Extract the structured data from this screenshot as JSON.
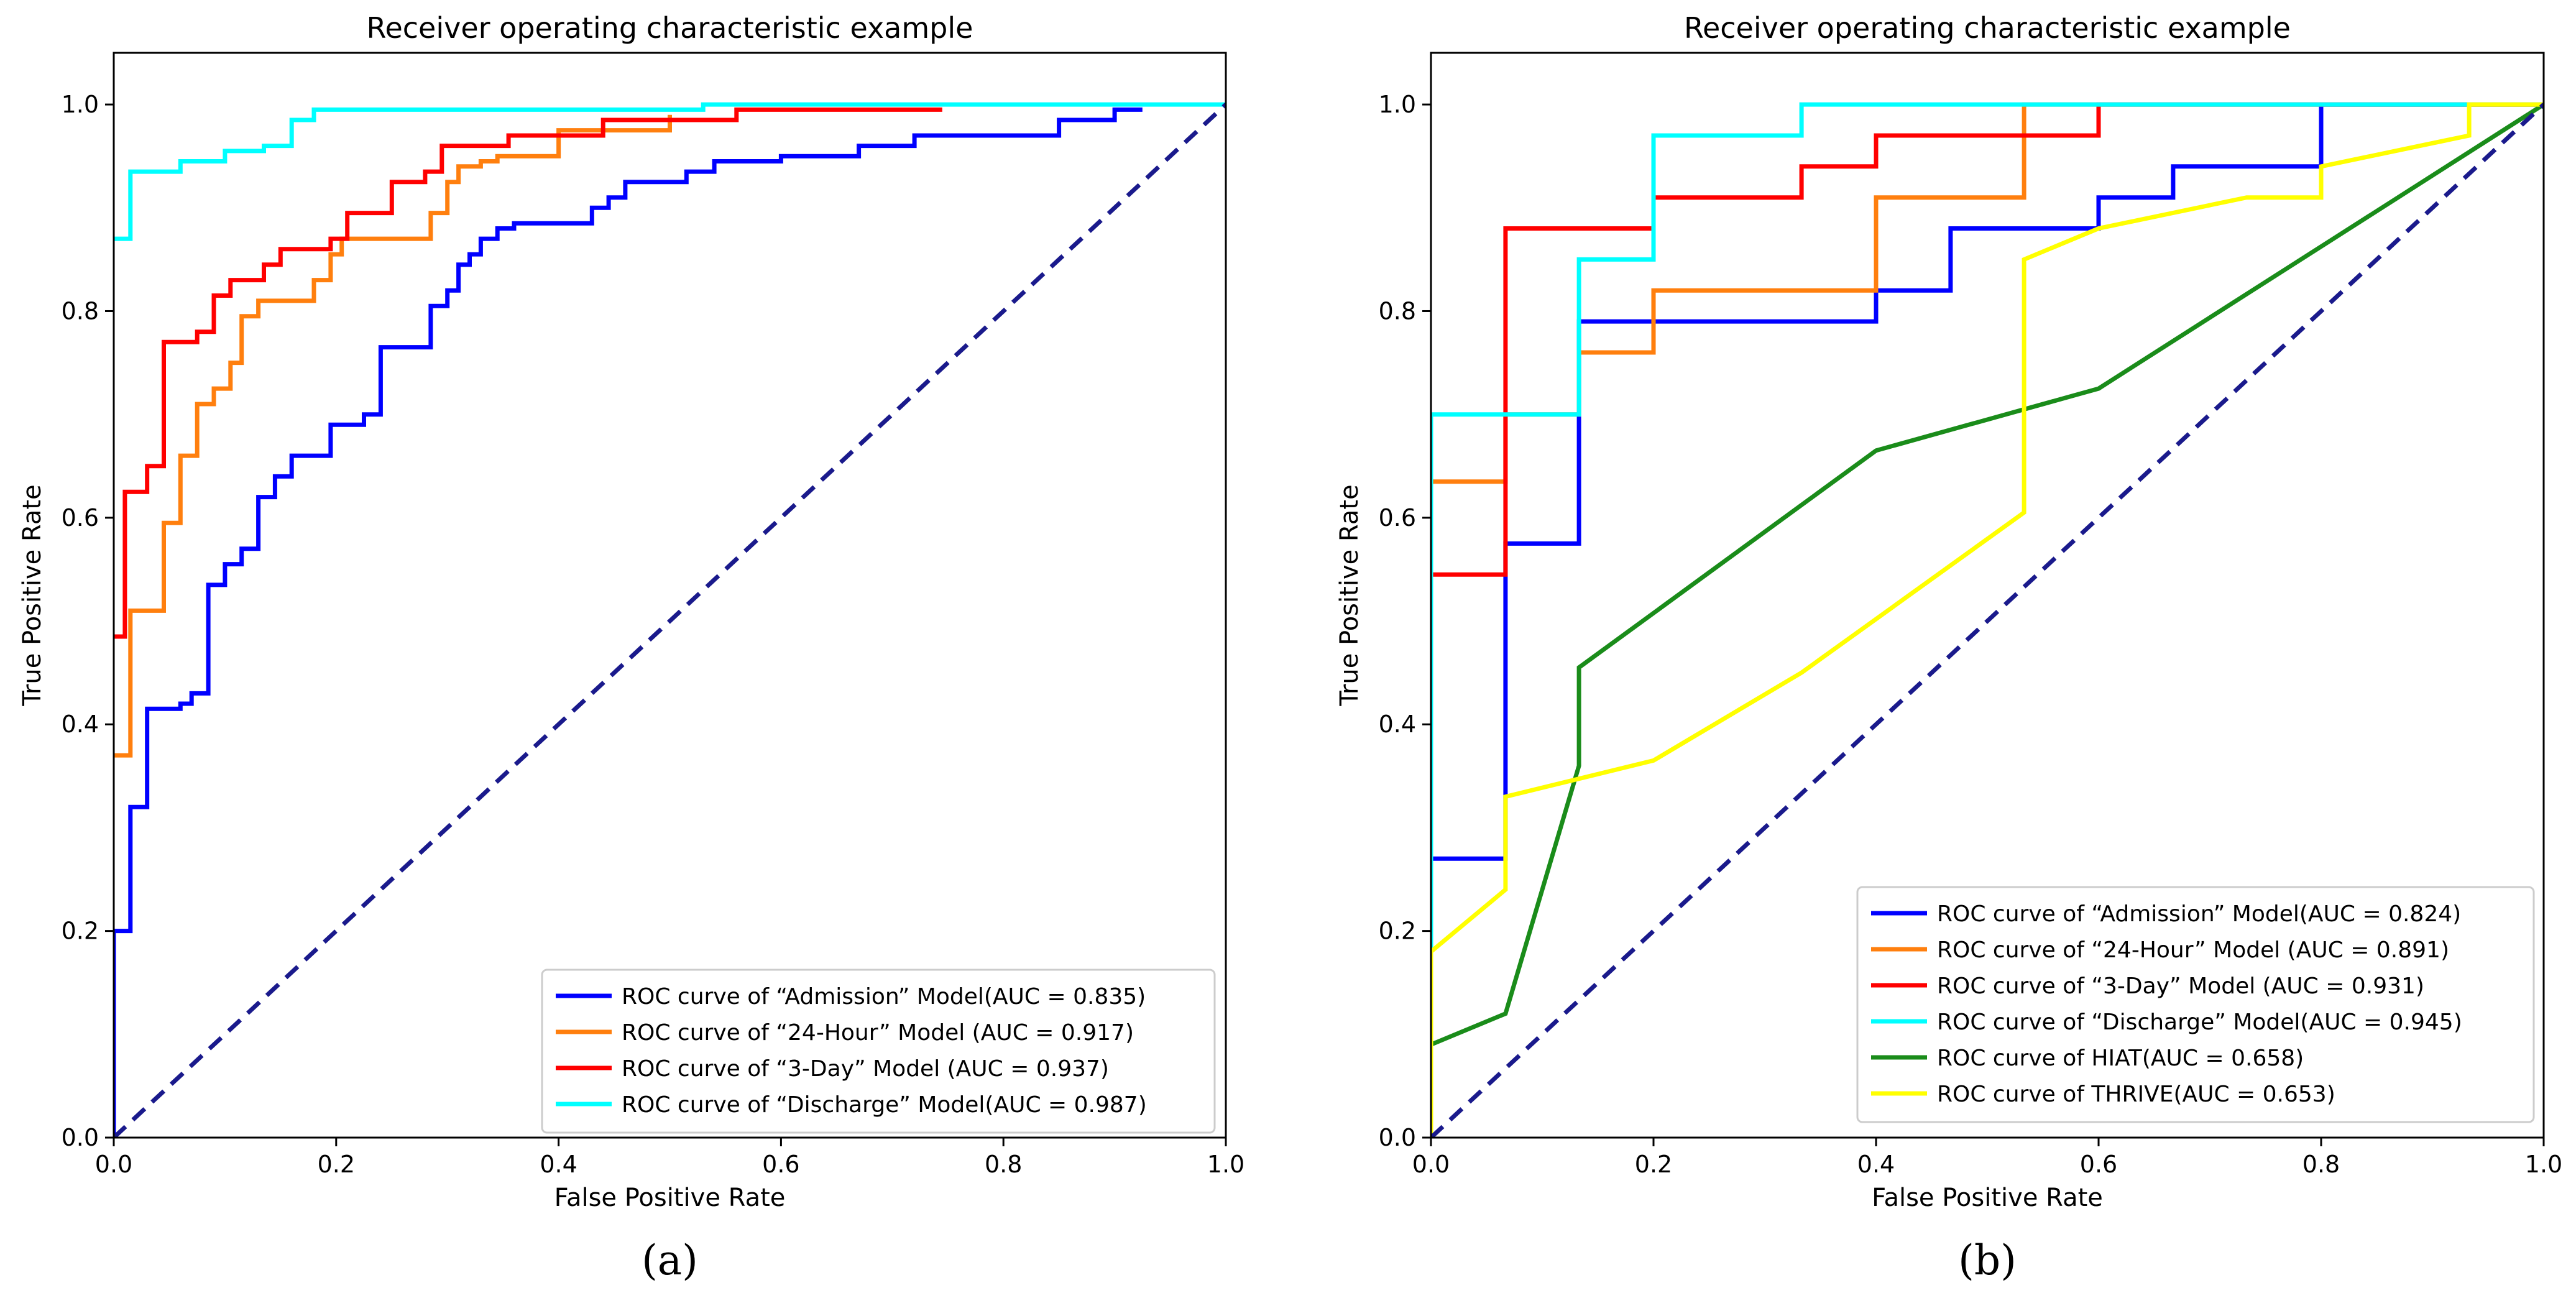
{
  "chart_data": [
    {
      "type": "line",
      "title": "Receiver operating characteristic example",
      "xlabel": "False Positive Rate",
      "ylabel": "True Positive Rate",
      "xlim": [
        0,
        1
      ],
      "ylim": [
        0,
        1.05
      ],
      "xticks": [
        "0.0",
        "0.2",
        "0.4",
        "0.6",
        "0.8",
        "1.0"
      ],
      "yticks": [
        "0.0",
        "0.2",
        "0.4",
        "0.6",
        "0.8",
        "1.0"
      ],
      "grid": false,
      "legend_position": "lower-right",
      "panel_label": "(a)",
      "chance_line": {
        "color": "#1a1a8c",
        "points": [
          [
            0,
            0
          ],
          [
            1,
            1
          ]
        ]
      },
      "series": [
        {
          "name": "ROC curve of “Admission” Model(AUC = 0.835)",
          "color": "#0000ff",
          "points": [
            [
              0,
              0
            ],
            [
              0,
              0.2
            ],
            [
              0.015,
              0.2
            ],
            [
              0.015,
              0.32
            ],
            [
              0.03,
              0.32
            ],
            [
              0.03,
              0.415
            ],
            [
              0.06,
              0.415
            ],
            [
              0.06,
              0.42
            ],
            [
              0.07,
              0.42
            ],
            [
              0.07,
              0.43
            ],
            [
              0.085,
              0.43
            ],
            [
              0.085,
              0.535
            ],
            [
              0.1,
              0.535
            ],
            [
              0.1,
              0.555
            ],
            [
              0.115,
              0.555
            ],
            [
              0.115,
              0.57
            ],
            [
              0.13,
              0.57
            ],
            [
              0.13,
              0.62
            ],
            [
              0.145,
              0.62
            ],
            [
              0.145,
              0.64
            ],
            [
              0.16,
              0.64
            ],
            [
              0.16,
              0.66
            ],
            [
              0.195,
              0.66
            ],
            [
              0.195,
              0.69
            ],
            [
              0.225,
              0.69
            ],
            [
              0.225,
              0.7
            ],
            [
              0.24,
              0.7
            ],
            [
              0.24,
              0.765
            ],
            [
              0.285,
              0.765
            ],
            [
              0.285,
              0.805
            ],
            [
              0.3,
              0.805
            ],
            [
              0.3,
              0.82
            ],
            [
              0.31,
              0.82
            ],
            [
              0.31,
              0.845
            ],
            [
              0.32,
              0.845
            ],
            [
              0.32,
              0.855
            ],
            [
              0.33,
              0.855
            ],
            [
              0.33,
              0.87
            ],
            [
              0.345,
              0.87
            ],
            [
              0.345,
              0.88
            ],
            [
              0.36,
              0.88
            ],
            [
              0.36,
              0.885
            ],
            [
              0.43,
              0.885
            ],
            [
              0.43,
              0.9
            ],
            [
              0.445,
              0.9
            ],
            [
              0.445,
              0.91
            ],
            [
              0.46,
              0.91
            ],
            [
              0.46,
              0.925
            ],
            [
              0.515,
              0.925
            ],
            [
              0.515,
              0.935
            ],
            [
              0.54,
              0.935
            ],
            [
              0.54,
              0.945
            ],
            [
              0.6,
              0.945
            ],
            [
              0.6,
              0.95
            ],
            [
              0.67,
              0.95
            ],
            [
              0.67,
              0.96
            ],
            [
              0.72,
              0.96
            ],
            [
              0.72,
              0.97
            ],
            [
              0.85,
              0.97
            ],
            [
              0.85,
              0.985
            ],
            [
              0.9,
              0.985
            ],
            [
              0.9,
              0.995
            ],
            [
              0.925,
              0.995
            ]
          ]
        },
        {
          "name": "ROC curve of “24-Hour” Model (AUC = 0.917)",
          "color": "#ff7f0e",
          "points": [
            [
              0,
              0.37
            ],
            [
              0.015,
              0.37
            ],
            [
              0.015,
              0.51
            ],
            [
              0.045,
              0.51
            ],
            [
              0.045,
              0.595
            ],
            [
              0.06,
              0.595
            ],
            [
              0.06,
              0.66
            ],
            [
              0.075,
              0.66
            ],
            [
              0.075,
              0.71
            ],
            [
              0.09,
              0.71
            ],
            [
              0.09,
              0.725
            ],
            [
              0.105,
              0.725
            ],
            [
              0.105,
              0.75
            ],
            [
              0.115,
              0.75
            ],
            [
              0.115,
              0.795
            ],
            [
              0.13,
              0.795
            ],
            [
              0.13,
              0.81
            ],
            [
              0.18,
              0.81
            ],
            [
              0.18,
              0.83
            ],
            [
              0.195,
              0.83
            ],
            [
              0.195,
              0.855
            ],
            [
              0.205,
              0.855
            ],
            [
              0.205,
              0.87
            ],
            [
              0.285,
              0.87
            ],
            [
              0.285,
              0.895
            ],
            [
              0.3,
              0.895
            ],
            [
              0.3,
              0.925
            ],
            [
              0.31,
              0.925
            ],
            [
              0.31,
              0.94
            ],
            [
              0.33,
              0.94
            ],
            [
              0.33,
              0.945
            ],
            [
              0.345,
              0.945
            ],
            [
              0.345,
              0.95
            ],
            [
              0.4,
              0.95
            ],
            [
              0.4,
              0.975
            ],
            [
              0.5,
              0.975
            ],
            [
              0.5,
              0.99
            ]
          ]
        },
        {
          "name": "ROC curve of “3-Day” Model (AUC = 0.937)",
          "color": "#ff0000",
          "points": [
            [
              0,
              0.485
            ],
            [
              0.01,
              0.485
            ],
            [
              0.01,
              0.625
            ],
            [
              0.03,
              0.625
            ],
            [
              0.03,
              0.65
            ],
            [
              0.045,
              0.65
            ],
            [
              0.045,
              0.77
            ],
            [
              0.075,
              0.77
            ],
            [
              0.075,
              0.78
            ],
            [
              0.09,
              0.78
            ],
            [
              0.09,
              0.815
            ],
            [
              0.105,
              0.815
            ],
            [
              0.105,
              0.83
            ],
            [
              0.135,
              0.83
            ],
            [
              0.135,
              0.845
            ],
            [
              0.15,
              0.845
            ],
            [
              0.15,
              0.86
            ],
            [
              0.195,
              0.86
            ],
            [
              0.195,
              0.87
            ],
            [
              0.21,
              0.87
            ],
            [
              0.21,
              0.895
            ],
            [
              0.25,
              0.895
            ],
            [
              0.25,
              0.925
            ],
            [
              0.28,
              0.925
            ],
            [
              0.28,
              0.935
            ],
            [
              0.295,
              0.935
            ],
            [
              0.295,
              0.96
            ],
            [
              0.355,
              0.96
            ],
            [
              0.355,
              0.97
            ],
            [
              0.44,
              0.97
            ],
            [
              0.44,
              0.985
            ],
            [
              0.56,
              0.985
            ],
            [
              0.56,
              0.995
            ],
            [
              0.745,
              0.995
            ]
          ]
        },
        {
          "name": "ROC curve of “Discharge” Model(AUC = 0.987)",
          "color": "#00ffff",
          "points": [
            [
              0,
              0.87
            ],
            [
              0.015,
              0.87
            ],
            [
              0.015,
              0.935
            ],
            [
              0.06,
              0.935
            ],
            [
              0.06,
              0.945
            ],
            [
              0.1,
              0.945
            ],
            [
              0.1,
              0.955
            ],
            [
              0.135,
              0.955
            ],
            [
              0.135,
              0.96
            ],
            [
              0.16,
              0.96
            ],
            [
              0.16,
              0.985
            ],
            [
              0.18,
              0.985
            ],
            [
              0.18,
              0.995
            ],
            [
              0.53,
              0.995
            ],
            [
              0.53,
              1.0
            ],
            [
              1.0,
              1.0
            ]
          ]
        }
      ]
    },
    {
      "type": "line",
      "title": "Receiver operating characteristic example",
      "xlabel": "False Positive Rate",
      "ylabel": "True Positive Rate",
      "xlim": [
        0,
        1
      ],
      "ylim": [
        0,
        1.05
      ],
      "xticks": [
        "0.0",
        "0.2",
        "0.4",
        "0.6",
        "0.8",
        "1.0"
      ],
      "yticks": [
        "0.0",
        "0.2",
        "0.4",
        "0.6",
        "0.8",
        "1.0"
      ],
      "grid": false,
      "legend_position": "lower-right",
      "panel_label": "(b)",
      "chance_line": {
        "color": "#1a1a8c",
        "points": [
          [
            0,
            0
          ],
          [
            1,
            1
          ]
        ]
      },
      "series": [
        {
          "name": "ROC curve of “Admission” Model(AUC = 0.824)",
          "color": "#0000ff",
          "points": [
            [
              0,
              0
            ],
            [
              0,
              0.27
            ],
            [
              0.067,
              0.27
            ],
            [
              0.067,
              0.575
            ],
            [
              0.133,
              0.575
            ],
            [
              0.133,
              0.79
            ],
            [
              0.4,
              0.79
            ],
            [
              0.4,
              0.82
            ],
            [
              0.467,
              0.82
            ],
            [
              0.467,
              0.88
            ],
            [
              0.6,
              0.88
            ],
            [
              0.6,
              0.91
            ],
            [
              0.667,
              0.91
            ],
            [
              0.667,
              0.94
            ],
            [
              0.8,
              0.94
            ],
            [
              0.8,
              1.0
            ],
            [
              1.0,
              1.0
            ]
          ]
        },
        {
          "name": "ROC curve of “24-Hour” Model (AUC = 0.891)",
          "color": "#ff7f0e",
          "points": [
            [
              0,
              0
            ],
            [
              0,
              0.635
            ],
            [
              0.067,
              0.635
            ],
            [
              0.067,
              0.7
            ],
            [
              0.133,
              0.7
            ],
            [
              0.133,
              0.76
            ],
            [
              0.2,
              0.76
            ],
            [
              0.2,
              0.82
            ],
            [
              0.4,
              0.82
            ],
            [
              0.4,
              0.91
            ],
            [
              0.533,
              0.91
            ],
            [
              0.533,
              1.0
            ],
            [
              1.0,
              1.0
            ]
          ]
        },
        {
          "name": "ROC curve of “3-Day” Model  (AUC = 0.931)",
          "color": "#ff0000",
          "points": [
            [
              0,
              0
            ],
            [
              0,
              0.545
            ],
            [
              0.067,
              0.545
            ],
            [
              0.067,
              0.88
            ],
            [
              0.2,
              0.88
            ],
            [
              0.2,
              0.91
            ],
            [
              0.333,
              0.91
            ],
            [
              0.333,
              0.94
            ],
            [
              0.4,
              0.94
            ],
            [
              0.4,
              0.97
            ],
            [
              0.6,
              0.97
            ],
            [
              0.6,
              1.0
            ],
            [
              1.0,
              1.0
            ]
          ]
        },
        {
          "name": "ROC curve of “Discharge” Model(AUC = 0.945)",
          "color": "#00ffff",
          "points": [
            [
              0,
              0
            ],
            [
              0,
              0.7
            ],
            [
              0.133,
              0.7
            ],
            [
              0.133,
              0.85
            ],
            [
              0.2,
              0.85
            ],
            [
              0.2,
              0.97
            ],
            [
              0.333,
              0.97
            ],
            [
              0.333,
              1.0
            ],
            [
              1.0,
              1.0
            ]
          ]
        },
        {
          "name": "ROC curve of HIAT(AUC = 0.658)",
          "color": "#1a8c1a",
          "points": [
            [
              0,
              0.09
            ],
            [
              0.067,
              0.12
            ],
            [
              0.133,
              0.36
            ],
            [
              0.133,
              0.455
            ],
            [
              0.4,
              0.665
            ],
            [
              0.6,
              0.725
            ],
            [
              1.0,
              1.0
            ]
          ]
        },
        {
          "name": "ROC curve of THRIVE(AUC = 0.653)",
          "color": "#ffff00",
          "points": [
            [
              0,
              0
            ],
            [
              0,
              0.18
            ],
            [
              0.067,
              0.24
            ],
            [
              0.067,
              0.33
            ],
            [
              0.2,
              0.365
            ],
            [
              0.333,
              0.45
            ],
            [
              0.533,
              0.605
            ],
            [
              0.533,
              0.85
            ],
            [
              0.6,
              0.88
            ],
            [
              0.733,
              0.91
            ],
            [
              0.8,
              0.91
            ],
            [
              0.8,
              0.94
            ],
            [
              0.933,
              0.97
            ],
            [
              0.933,
              1.0
            ],
            [
              1.0,
              1.0
            ]
          ]
        }
      ]
    }
  ]
}
